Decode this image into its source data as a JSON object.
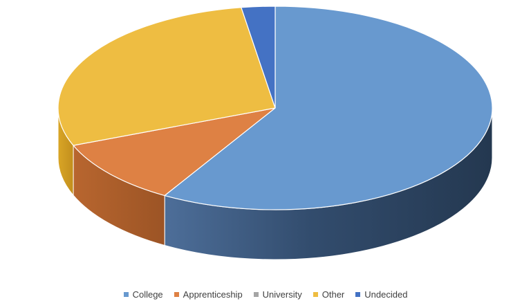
{
  "chart_data": {
    "type": "pie",
    "title": "",
    "style": "3d",
    "legend_position": "bottom",
    "slices": [
      {
        "label": "College",
        "value": 58.5,
        "color": "#6899CF"
      },
      {
        "label": "Apprenticeship",
        "value": 10.5,
        "color": "#DE8144"
      },
      {
        "label": "University",
        "value": 0,
        "color": "#A5A5A5"
      },
      {
        "label": "Other",
        "value": 28.5,
        "color": "#EEBD42"
      },
      {
        "label": "Undecided",
        "value": 2.5,
        "color": "#4472C4"
      }
    ]
  }
}
